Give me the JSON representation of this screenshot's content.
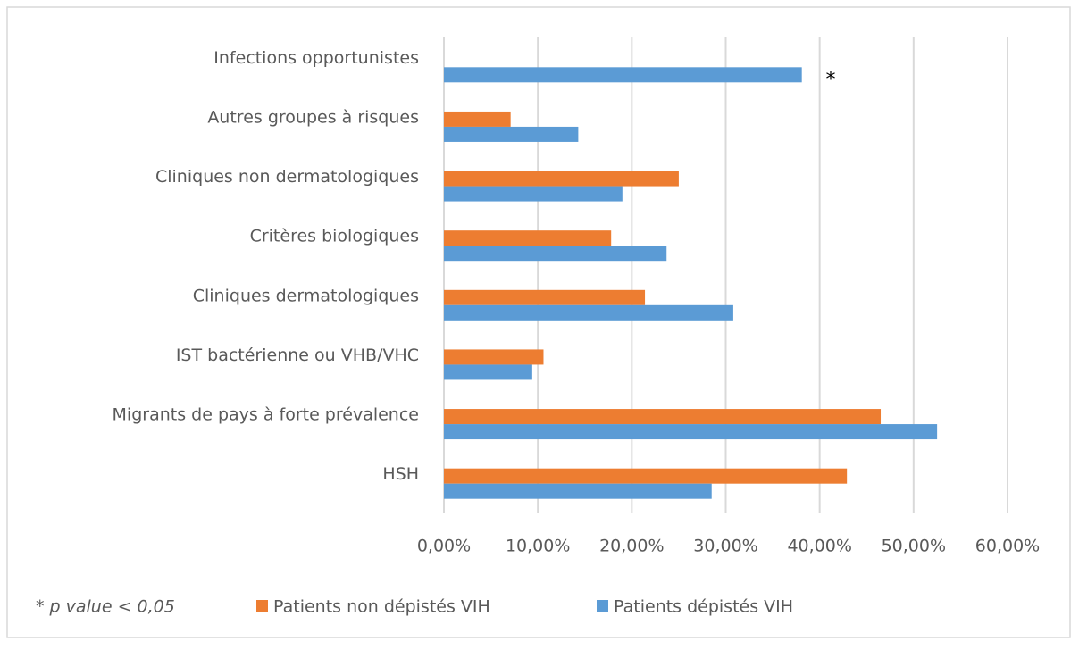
{
  "chart_data": {
    "type": "barh",
    "categories": [
      "Infections opportunistes",
      "Autres groupes à risques",
      "Cliniques non dermatologiques",
      "Critères biologiques",
      "Cliniques dermatologiques",
      "IST bactérienne ou VHB/VHC",
      "Migrants de pays à forte prévalence",
      "HSH"
    ],
    "series": [
      {
        "name": "Patients non dépistés VIH",
        "color": "#ed7d31",
        "values": [
          null,
          7.1,
          25.0,
          17.8,
          21.4,
          10.6,
          46.5,
          42.9
        ]
      },
      {
        "name": "Patients dépistés VIH",
        "color": "#5b9bd5",
        "values": [
          38.1,
          14.3,
          19.0,
          23.7,
          30.8,
          9.4,
          52.5,
          28.5
        ]
      }
    ],
    "xlim": [
      0,
      60
    ],
    "xticks": [
      {
        "value": 0,
        "label": "0,00%"
      },
      {
        "value": 10,
        "label": "10,00%"
      },
      {
        "value": 20,
        "label": "20,00%"
      },
      {
        "value": 30,
        "label": "30,00%"
      },
      {
        "value": 40,
        "label": "40,00%"
      },
      {
        "value": 50,
        "label": "50,00%"
      },
      {
        "value": 60,
        "label": "60,00%"
      }
    ],
    "grid": true,
    "annotation": "*",
    "note": "* p value < 0,05",
    "legend": "bottom"
  }
}
